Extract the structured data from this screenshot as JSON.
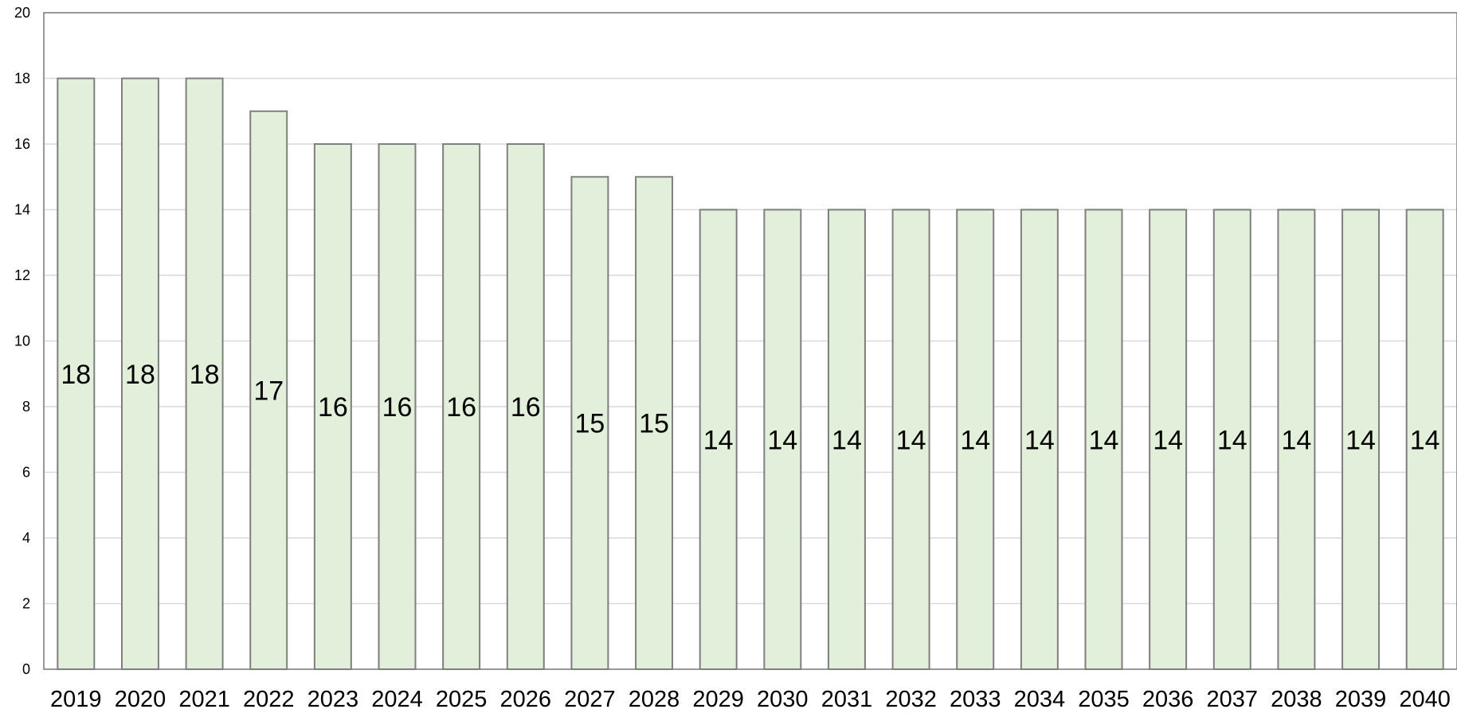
{
  "chart_data": {
    "type": "bar",
    "title": "",
    "xlabel": "",
    "ylabel": "",
    "ylim": [
      0,
      20
    ],
    "yticks": [
      0,
      2,
      4,
      6,
      8,
      10,
      12,
      14,
      16,
      18,
      20
    ],
    "grid": true,
    "legend": "none",
    "categories": [
      "2019",
      "2020",
      "2021",
      "2022",
      "2023",
      "2024",
      "2025",
      "2026",
      "2027",
      "2028",
      "2029",
      "2030",
      "2031",
      "2032",
      "2033",
      "2034",
      "2035",
      "2036",
      "2037",
      "2038",
      "2039",
      "2040"
    ],
    "values": [
      18,
      18,
      18,
      17,
      16,
      16,
      16,
      16,
      15,
      15,
      14,
      14,
      14,
      14,
      14,
      14,
      14,
      14,
      14,
      14,
      14,
      14
    ],
    "colors": {
      "bar_fill": "#e2efda",
      "bar_stroke": "#7f7f7f",
      "grid": "#d9d9d9"
    }
  }
}
